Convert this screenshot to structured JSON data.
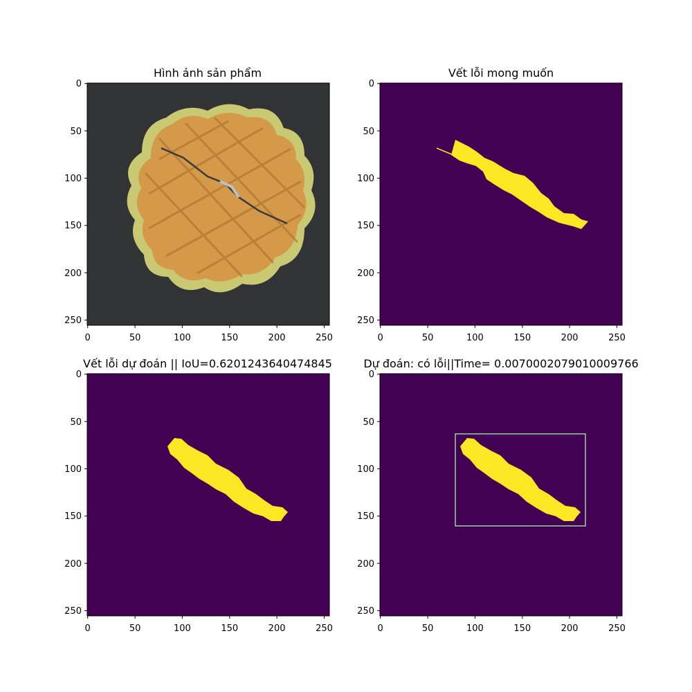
{
  "colors": {
    "background": "#440154",
    "defect": "#fde725",
    "box": "#8fd7a0",
    "photo_bg": "#323334",
    "waffle": "#d49a4a",
    "waffle_edge": "#c9c873"
  },
  "panels": [
    {
      "id": "product-image",
      "title": "Hình ảnh sản phẩm",
      "kind": "photo",
      "xticks": [
        "0",
        "50",
        "100",
        "150",
        "200",
        "250"
      ],
      "yticks": [
        "0",
        "50",
        "100",
        "150",
        "200",
        "250"
      ]
    },
    {
      "id": "expected-defect",
      "title": "Vết lỗi mong muốn",
      "kind": "mask",
      "xticks": [
        "0",
        "50",
        "100",
        "150",
        "200",
        "250"
      ],
      "yticks": [
        "0",
        "50",
        "100",
        "150",
        "200",
        "250"
      ]
    },
    {
      "id": "predicted-defect",
      "title": "Vết lỗi dự đoán || IoU=0.6201243640474845",
      "kind": "mask",
      "xticks": [
        "0",
        "50",
        "100",
        "150",
        "200",
        "250"
      ],
      "yticks": [
        "0",
        "50",
        "100",
        "150",
        "200",
        "250"
      ]
    },
    {
      "id": "prediction-result",
      "title": "Dự đoán: có lỗi||Time= 0.007000207901000976​6",
      "kind": "mask-box",
      "xticks": [
        "0",
        "50",
        "100",
        "150",
        "200",
        "250"
      ],
      "yticks": [
        "0",
        "50",
        "100",
        "150",
        "200",
        "250"
      ]
    }
  ]
}
